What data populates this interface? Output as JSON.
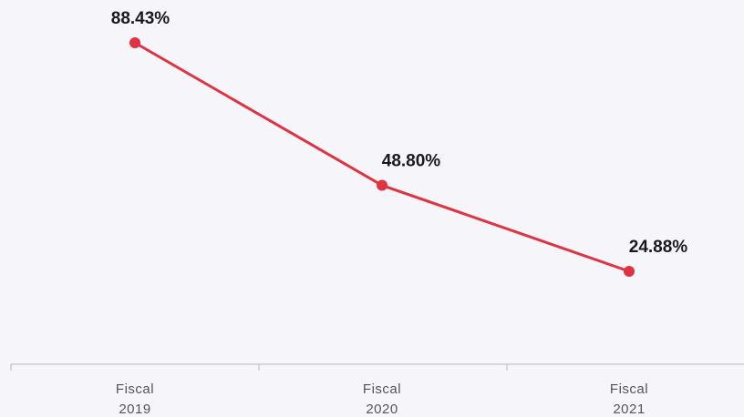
{
  "chart_data": {
    "type": "line",
    "categories": [
      [
        "Fiscal",
        "2019"
      ],
      [
        "Fiscal",
        "2020"
      ],
      [
        "Fiscal",
        "2021"
      ]
    ],
    "values": [
      88.43,
      48.8,
      24.88
    ],
    "data_labels": [
      "88.43%",
      "48.80%",
      "24.88%"
    ],
    "title": "",
    "xlabel": "",
    "ylabel": "",
    "ylim": [
      0,
      100
    ],
    "grid": false,
    "legend": "none",
    "line_color": "#e03342",
    "axis_color": "#b9b9c0"
  }
}
